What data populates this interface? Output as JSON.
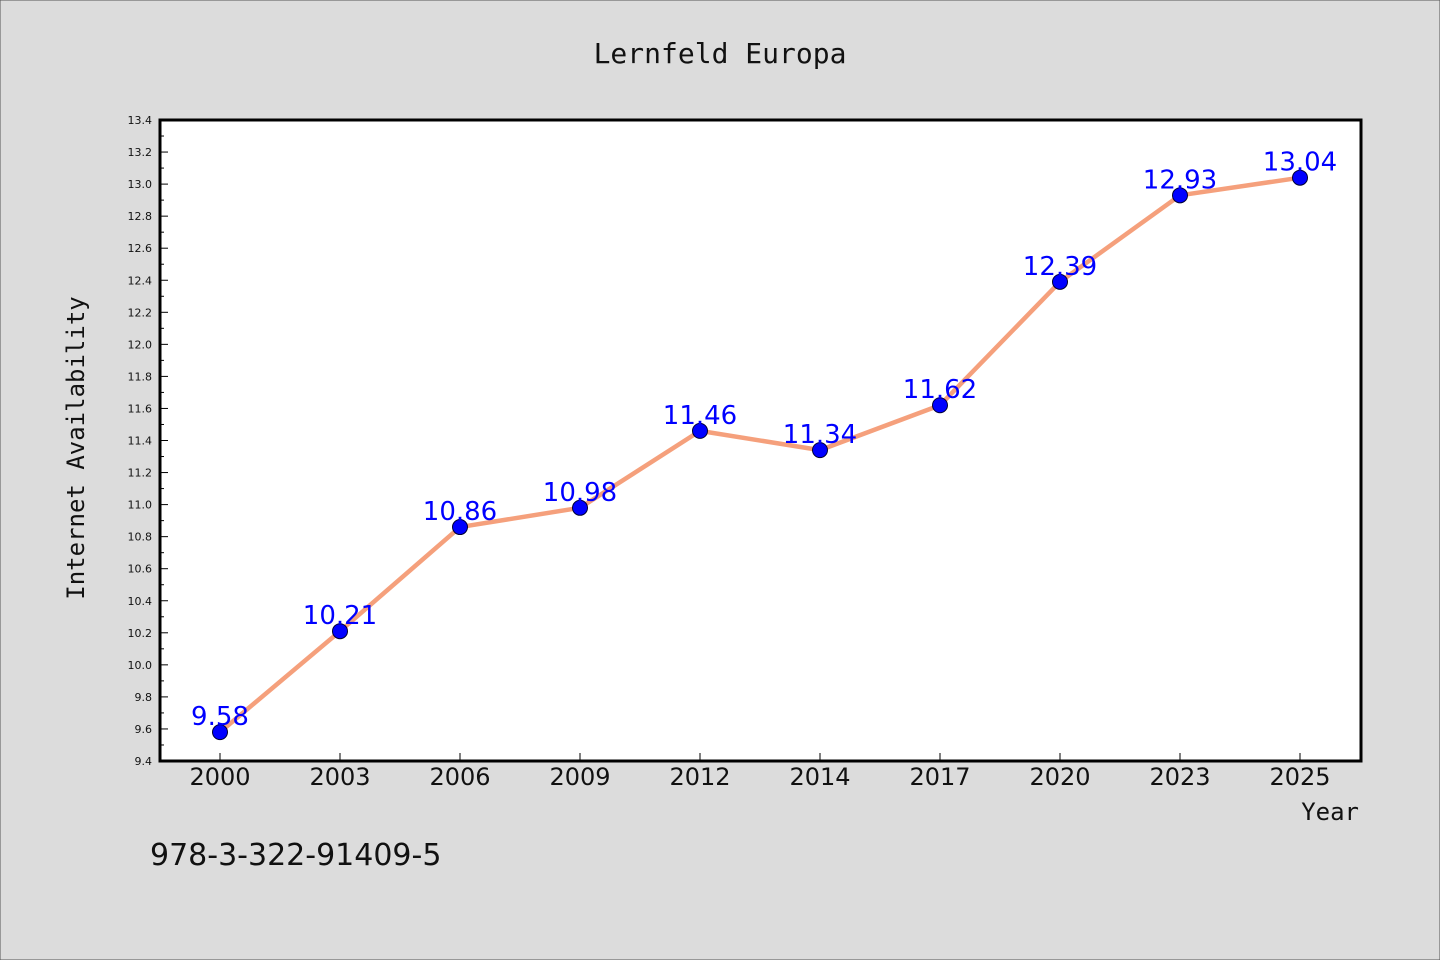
{
  "footer_text": "978-3-322-91409-5",
  "chart_data": {
    "type": "line",
    "title": "Lernfeld Europa",
    "xlabel": "Year",
    "ylabel": "Internet Availability",
    "categories": [
      "2000",
      "2003",
      "2006",
      "2009",
      "2012",
      "2014",
      "2017",
      "2020",
      "2023",
      "2025"
    ],
    "series": [
      {
        "values": [
          9.58,
          10.21,
          10.86,
          10.98,
          11.46,
          11.34,
          11.62,
          12.39,
          12.93,
          13.04
        ],
        "labels": [
          "9.58",
          "10.21",
          "10.86",
          "10.98",
          "11.46",
          "11.34",
          "11.62",
          "12.39",
          "12.93",
          "13.04"
        ]
      }
    ],
    "ylim": [
      9.4,
      13.4
    ],
    "yticks": [
      "9.4",
      "9.6",
      "9.8",
      "10.0",
      "10.2",
      "10.4",
      "10.6",
      "10.8",
      "11.0",
      "11.2",
      "11.4",
      "11.6",
      "11.8",
      "12.0",
      "12.2",
      "12.4",
      "12.6",
      "12.8",
      "13.0",
      "13.2",
      "13.4"
    ],
    "grid": false,
    "legend": "none",
    "colors": {
      "line": "#f5a07c",
      "marker": "#0000ff",
      "label": "#0000ff",
      "plot_bg": "#ffffff",
      "page_bg": "#dcdcdc"
    }
  }
}
